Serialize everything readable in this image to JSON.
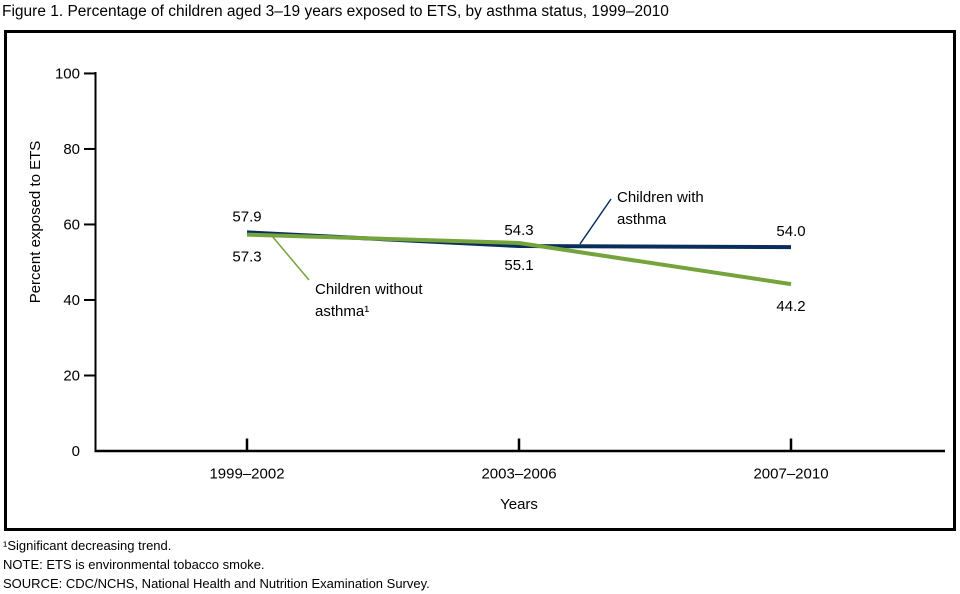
{
  "chart_data": {
    "type": "line",
    "title": "Figure 1. Percentage of children aged 3–19 years exposed to ETS, by asthma status, 1999–2010",
    "categories": [
      "1999–2002",
      "2003–2006",
      "2007–2010"
    ],
    "series": [
      {
        "name": "Children with asthma",
        "values": [
          57.9,
          54.3,
          54.0
        ],
        "color": "#0a2e5c",
        "label_lines": [
          "Children with",
          "asthma"
        ]
      },
      {
        "name": "Children without asthma",
        "values": [
          57.3,
          55.1,
          44.2
        ],
        "color": "#75a33c",
        "label_lines": [
          "Children without",
          "asthma¹"
        ]
      }
    ],
    "xlabel": "Years",
    "ylabel": "Percent exposed to ETS",
    "ylim": [
      0,
      100
    ],
    "yticks": [
      0,
      20,
      40,
      60,
      80,
      100
    ],
    "grid": false,
    "legend_position": "inline-annotations"
  },
  "footnotes": [
    "¹Significant decreasing trend.",
    "NOTE: ETS is environmental tobacco smoke.",
    "SOURCE: CDC/NCHS, National Health and Nutrition Examination Survey."
  ]
}
